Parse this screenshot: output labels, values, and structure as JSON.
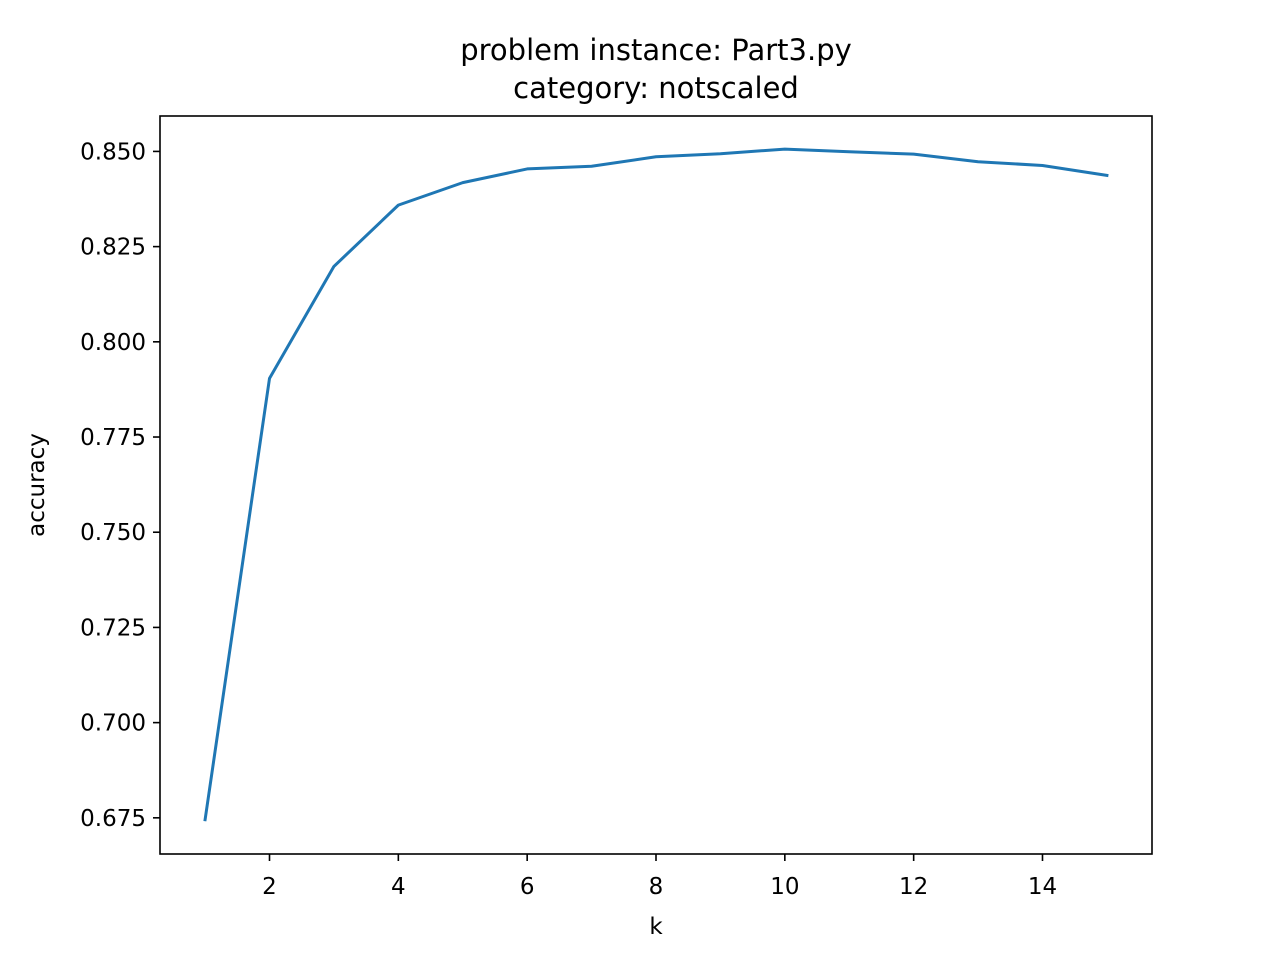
{
  "chart_data": {
    "type": "line",
    "title": "problem instance: Part3.py",
    "subtitle": "category: notscaled",
    "xlabel": "k",
    "ylabel": "accuracy",
    "xlim": [
      0.3,
      15.7
    ],
    "ylim": [
      0.6655,
      0.8593
    ],
    "x_ticks": [
      2,
      4,
      6,
      8,
      10,
      12,
      14
    ],
    "x_tick_labels": [
      "2",
      "4",
      "6",
      "8",
      "10",
      "12",
      "14"
    ],
    "y_ticks": [
      0.675,
      0.7,
      0.725,
      0.75,
      0.775,
      0.8,
      0.825,
      0.85
    ],
    "y_tick_labels": [
      "0.675",
      "0.700",
      "0.725",
      "0.750",
      "0.775",
      "0.800",
      "0.825",
      "0.850"
    ],
    "grid": false,
    "series": [
      {
        "color": "#1f77b4",
        "x": [
          1,
          2,
          3,
          4,
          5,
          6,
          7,
          8,
          9,
          10,
          11,
          12,
          13,
          14,
          15
        ],
        "y": [
          0.6745,
          0.7904,
          0.8198,
          0.8359,
          0.8418,
          0.8454,
          0.8461,
          0.8486,
          0.8494,
          0.8506,
          0.8499,
          0.8493,
          0.8473,
          0.8463,
          0.8437
        ]
      }
    ]
  }
}
